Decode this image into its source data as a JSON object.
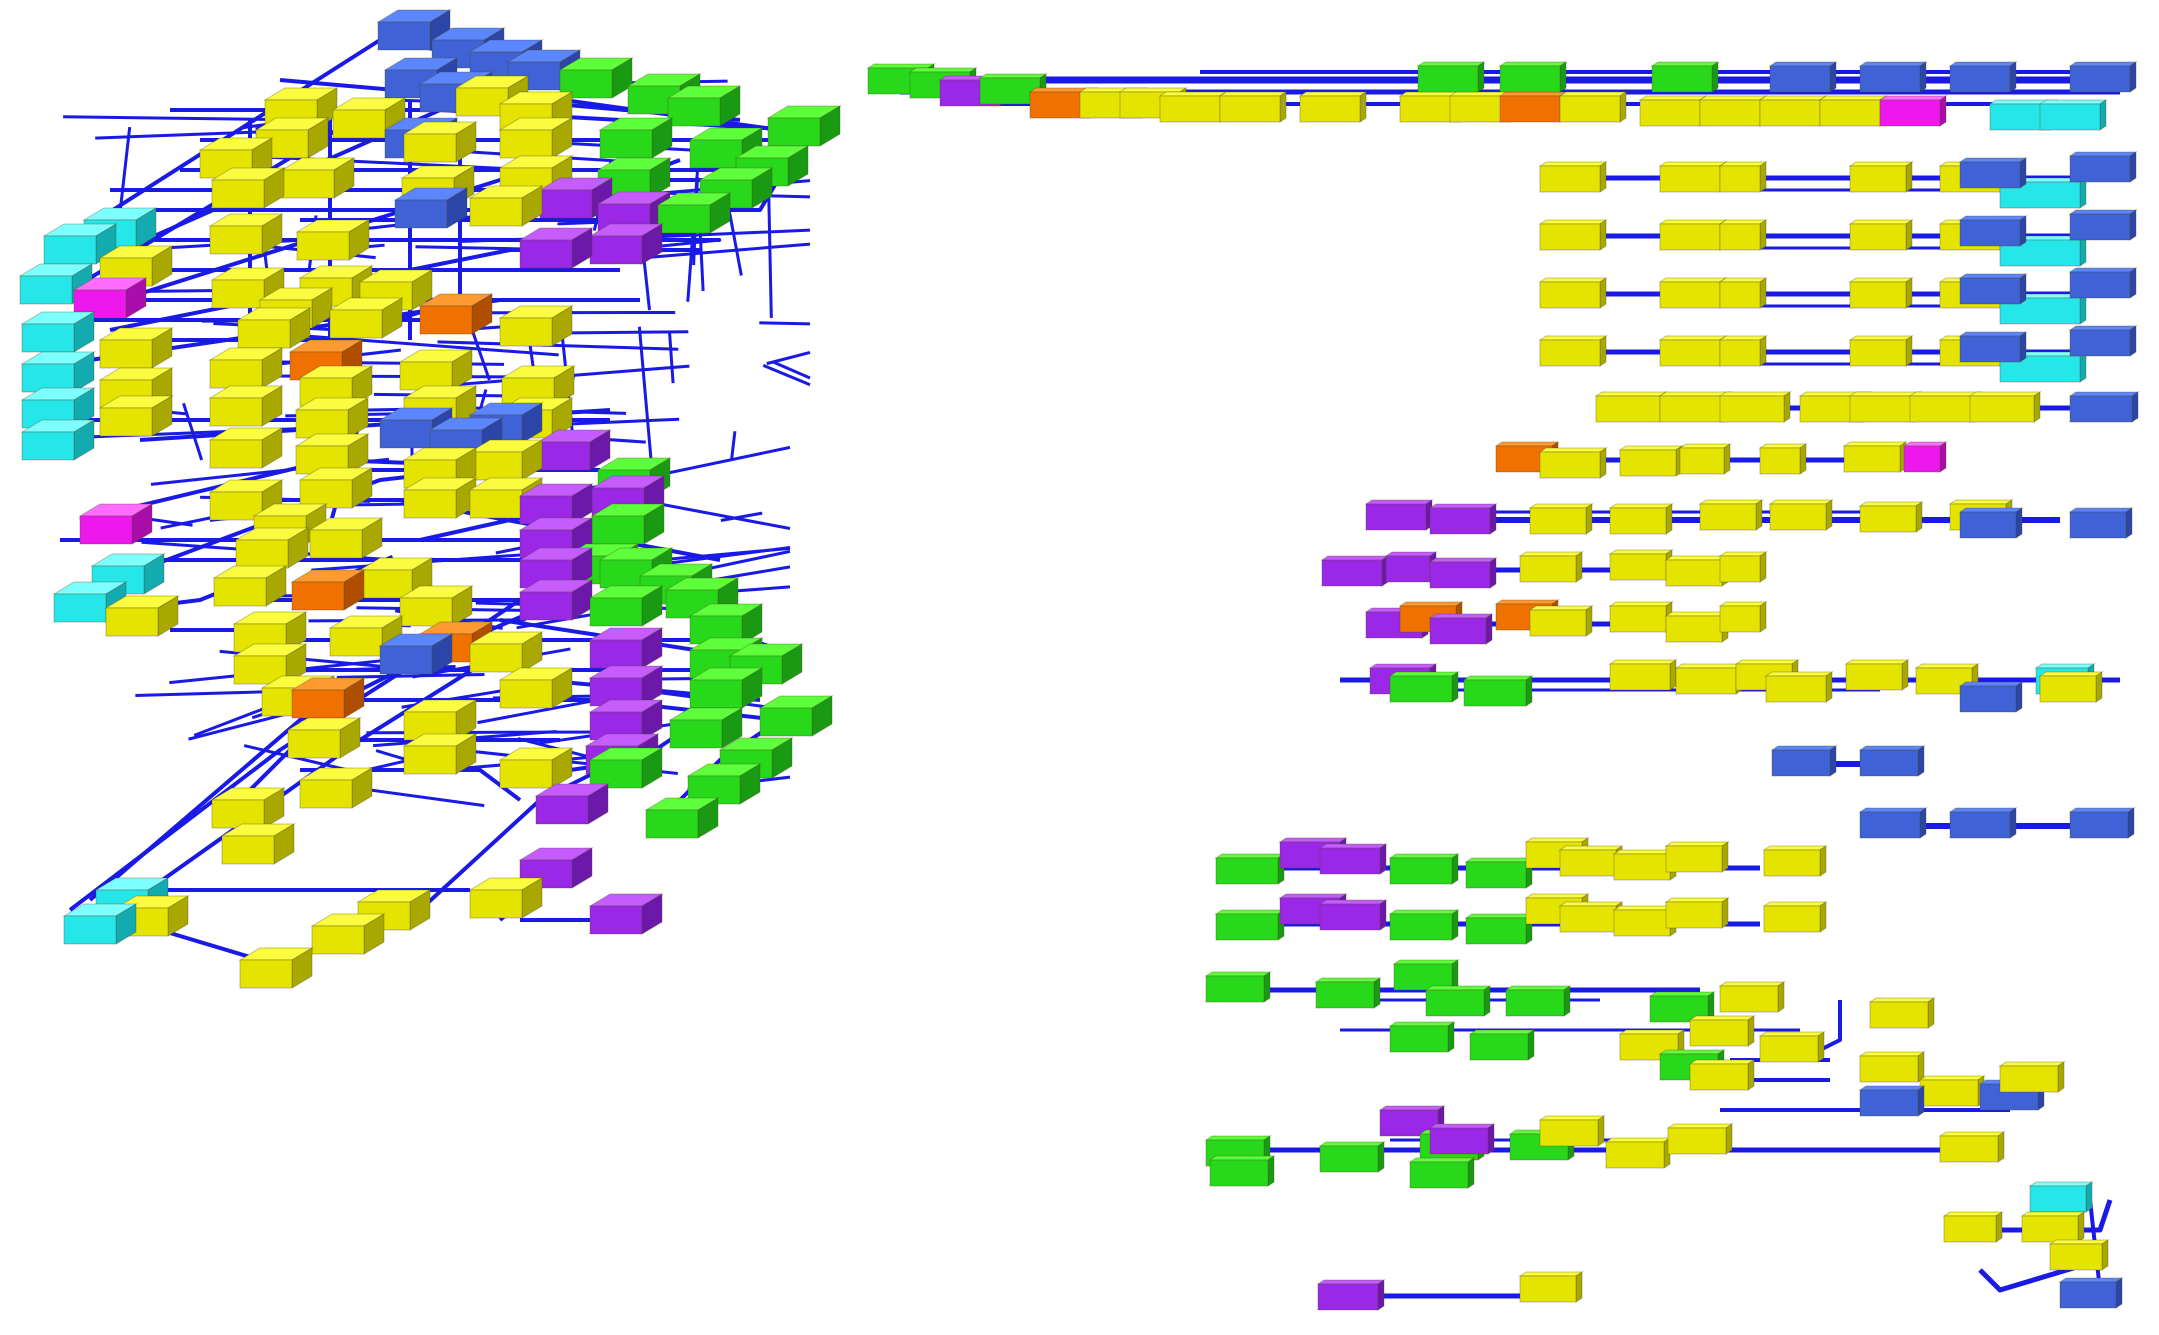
{
  "title": "",
  "colors": {
    "background": "#ffffff",
    "edge": "#1a1ae6",
    "node_types": {
      "blue": {
        "top": "#5b86ff",
        "front": "#3f63d6",
        "side": "#2b45a8"
      },
      "yellow": {
        "top": "#fbfb40",
        "front": "#e4e400",
        "side": "#a8a800"
      },
      "green": {
        "top": "#5cff3a",
        "front": "#28d81a",
        "side": "#1a9a12"
      },
      "cyan": {
        "top": "#7dffff",
        "front": "#26e6ea",
        "side": "#13aab0"
      },
      "purple": {
        "top": "#c65cff",
        "front": "#9a28e6",
        "side": "#6c18aa"
      },
      "orange": {
        "top": "#ff9a30",
        "front": "#f07000",
        "side": "#b04e00"
      },
      "magenta": {
        "top": "#ff6cff",
        "front": "#ee18ee",
        "side": "#aa0eaa"
      }
    }
  },
  "views": [
    {
      "name": "perspective-3d-view"
    },
    {
      "name": "side-projection-view"
    }
  ]
}
